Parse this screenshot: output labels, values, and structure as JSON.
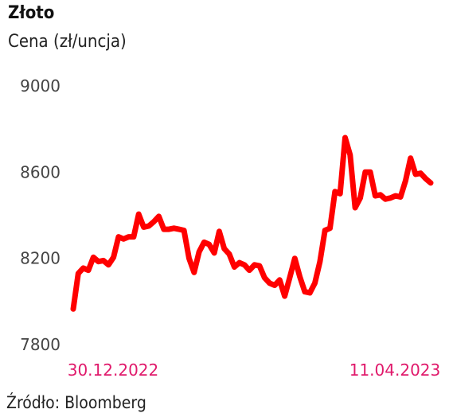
{
  "chart_data": {
    "type": "line",
    "title": "Złoto",
    "subtitle": "Cena (zł/uncja)",
    "source": "Źródło: Bloomberg",
    "xlabel": "",
    "ylabel": "",
    "ylim": [
      7800,
      9000
    ],
    "yticks": [
      "9000",
      "8600",
      "8200",
      "7800"
    ],
    "x_first_label": "30.12.2022",
    "x_last_label": "11.04.2023",
    "grid": false,
    "legend": "none",
    "line_color": "#ff0000",
    "series": [
      {
        "values": [
          7965,
          8130,
          8155,
          8145,
          8205,
          8185,
          8190,
          8170,
          8205,
          8300,
          8290,
          8300,
          8300,
          8405,
          8345,
          8350,
          8370,
          8395,
          8335,
          8335,
          8340,
          8335,
          8330,
          8200,
          8135,
          8230,
          8275,
          8265,
          8225,
          8325,
          8245,
          8220,
          8160,
          8180,
          8170,
          8145,
          8170,
          8165,
          8110,
          8085,
          8075,
          8100,
          8025,
          8110,
          8200,
          8115,
          8045,
          8040,
          8085,
          8185,
          8330,
          8340,
          8510,
          8500,
          8760,
          8680,
          8435,
          8480,
          8600,
          8600,
          8490,
          8495,
          8475,
          8480,
          8490,
          8485,
          8560,
          8665,
          8590,
          8595,
          8570,
          8550
        ]
      }
    ]
  },
  "ui": {
    "title": "Złoto",
    "subtitle": "Cena (zł/uncja)",
    "source": "Źródło: Bloomberg"
  }
}
